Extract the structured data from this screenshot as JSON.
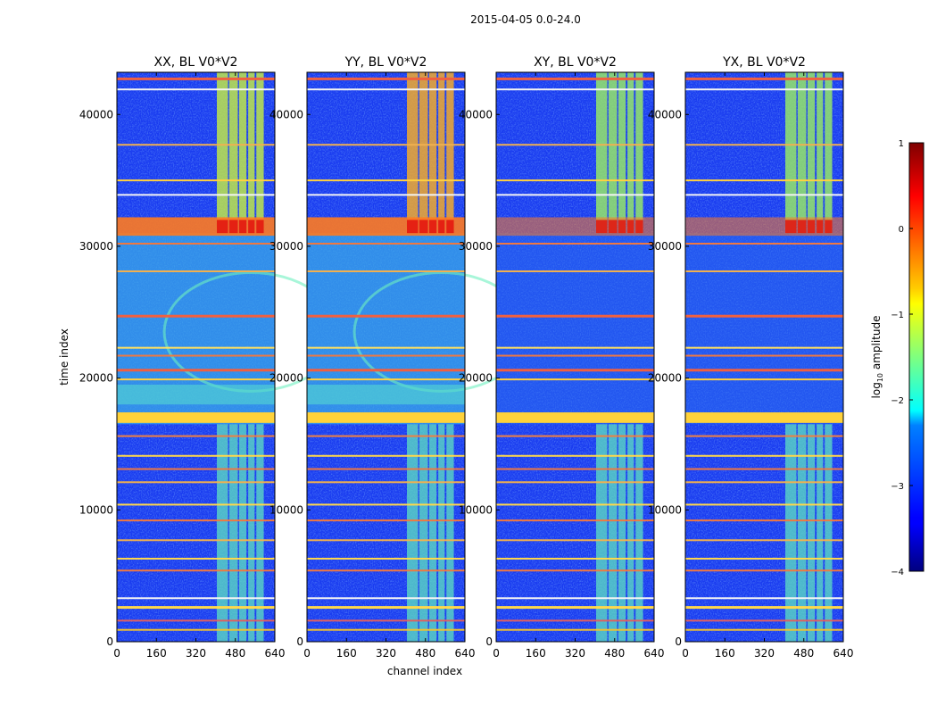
{
  "figure": {
    "suptitle": "2015-04-05 0.0-24.0",
    "xlabel": "channel index",
    "ylabel": "time index"
  },
  "chart_data": {
    "type": "heatmap",
    "xlim": [
      0,
      640
    ],
    "ylim": [
      0,
      43200
    ],
    "xticks": [
      0,
      160,
      320,
      480,
      640
    ],
    "yticks": [
      0,
      10000,
      20000,
      30000,
      40000
    ],
    "panels": [
      {
        "title": "XX, BL V0*V2",
        "pol": "XX"
      },
      {
        "title": "YY, BL V0*V2",
        "pol": "YY"
      },
      {
        "title": "XY, BL V0*V2",
        "pol": "XY"
      },
      {
        "title": "YX, BL V0*V2",
        "pol": "YX"
      }
    ],
    "colorbar": {
      "label": "log₁₀ amplitude",
      "label_base": "log",
      "label_sub": "10",
      "label_rest": " amplitude",
      "range": [
        -4,
        1
      ],
      "ticks": [
        1,
        0,
        -1,
        -2,
        -3,
        -4
      ],
      "tick_labels": [
        "1",
        "0",
        "−1",
        "−2",
        "−3",
        "−4"
      ],
      "colormap": "jet"
    }
  }
}
